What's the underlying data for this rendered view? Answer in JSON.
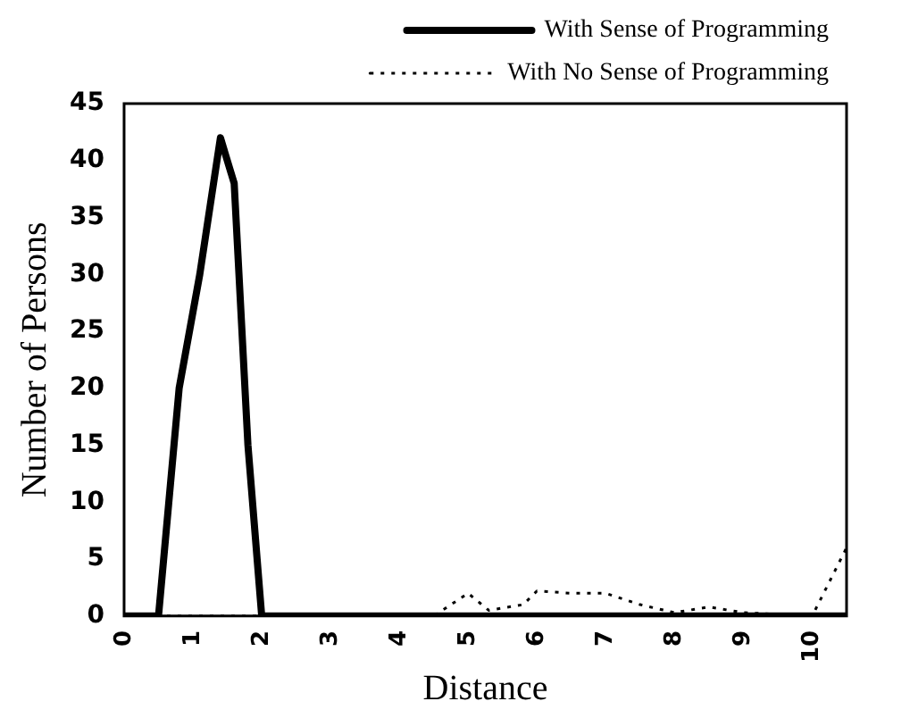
{
  "chart_data": {
    "type": "line",
    "xlabel": "Distance",
    "ylabel": "Number of Persons",
    "xlim": [
      0,
      10.5
    ],
    "xticks": [
      0,
      1,
      2,
      3,
      4,
      5,
      6,
      7,
      8,
      9,
      10
    ],
    "ylim": [
      0,
      45
    ],
    "yticks": [
      0,
      5,
      10,
      15,
      20,
      25,
      30,
      35,
      40,
      45
    ],
    "series": [
      {
        "name": "With Sense of Programming",
        "color": "#000000",
        "line_style": "solid",
        "x": [
          0,
          0.5,
          0.8,
          1.1,
          1.4,
          1.6,
          1.8,
          2.0,
          10.5
        ],
        "values": [
          0,
          0,
          20,
          30,
          42,
          38,
          15,
          0,
          0
        ]
      },
      {
        "name": "With No Sense of Programming",
        "color": "#000000",
        "line_style": "dotted",
        "x": [
          0,
          4.5,
          5,
          5.3,
          5.8,
          6,
          6.5,
          7,
          7.5,
          8,
          8.5,
          9,
          10,
          10.5
        ],
        "values": [
          0,
          0,
          2,
          0.5,
          1,
          2.2,
          2,
          2,
          1,
          0.3,
          0.8,
          0.3,
          0,
          6
        ]
      }
    ],
    "legend": "top right",
    "grid": false,
    "marker": "none"
  }
}
